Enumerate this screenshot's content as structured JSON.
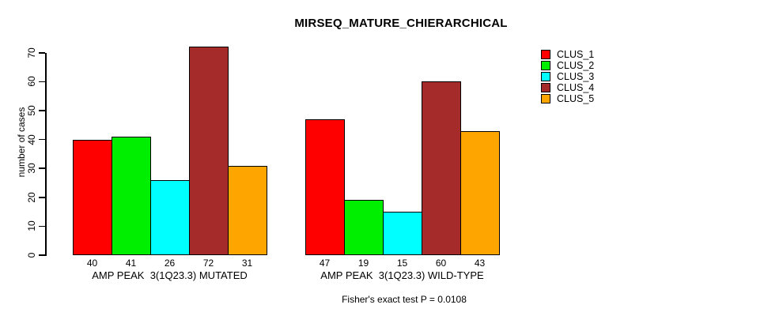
{
  "chart_data": {
    "type": "bar",
    "title": "MIRSEQ_MATURE_CHIERARCHICAL",
    "xlabel": "",
    "ylabel": "number of cases",
    "ylim": [
      0,
      70
    ],
    "yticks": [
      0,
      10,
      20,
      30,
      40,
      50,
      60,
      70
    ],
    "grid": false,
    "bar_value_labels_shown": true,
    "categories": [
      "AMP PEAK  3(1Q23.3) MUTATED",
      "AMP PEAK  3(1Q23.3) WILD-TYPE"
    ],
    "series": [
      {
        "name": "CLUS_1",
        "color": "#FF0000",
        "values": [
          40,
          47
        ]
      },
      {
        "name": "CLUS_2",
        "color": "#00EE00",
        "values": [
          41,
          19
        ]
      },
      {
        "name": "CLUS_3",
        "color": "#00FFFF",
        "values": [
          26,
          15
        ]
      },
      {
        "name": "CLUS_4",
        "color": "#A52A2A",
        "values": [
          72,
          60
        ]
      },
      {
        "name": "CLUS_5",
        "color": "#FFA500",
        "values": [
          31,
          43
        ]
      }
    ],
    "legend": {
      "position": "right",
      "entries": [
        "CLUS_1",
        "CLUS_2",
        "CLUS_3",
        "CLUS_4",
        "CLUS_5"
      ]
    },
    "annotation": "Fisher's exact test P = 0.0108"
  }
}
